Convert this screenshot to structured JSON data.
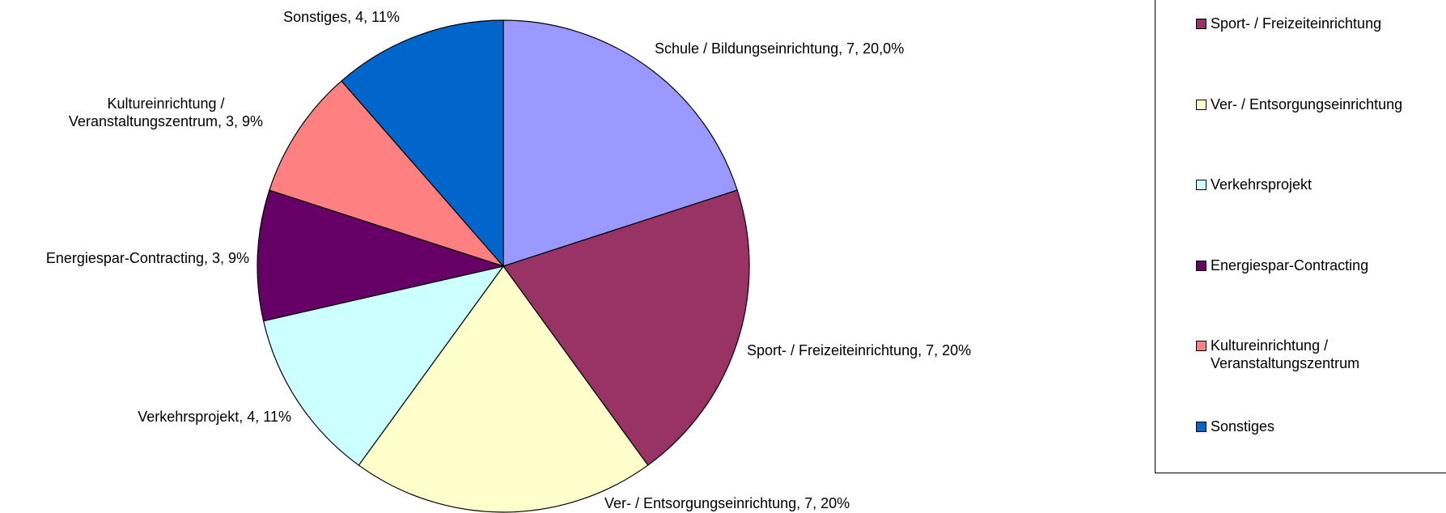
{
  "chart_data": {
    "type": "pie",
    "categories": [
      "Schule / Bildungseinrichtung",
      "Sport- / Freizeiteinrichtung",
      "Ver- / Entsorgungseinrichtung",
      "Verkehrsprojekt",
      "Energiespar-Contracting",
      "Kultureinrichtung / Veranstaltungszentrum",
      "Sonstiges"
    ],
    "values": [
      7,
      7,
      7,
      4,
      3,
      3,
      4
    ],
    "value_labels": [
      "Schule / Bildungseinrichtung, 7, 20,0%",
      "Sport- / Freizeiteinrichtung, 7, 20%",
      "Ver- / Entsorgungseinrichtung, 7, 20%",
      "Verkehrsprojekt, 4, 11%",
      "Energiespar-Contracting, 3, 9%",
      "Kultureinrichtung / Veranstaltungszentrum, 3, 9%",
      "Sonstiges, 4, 11%"
    ],
    "colors": [
      "#9999FF",
      "#993366",
      "#FFFFCC",
      "#CCFFFF",
      "#660066",
      "#FF8080",
      "#0066CC"
    ],
    "legend": "right"
  }
}
